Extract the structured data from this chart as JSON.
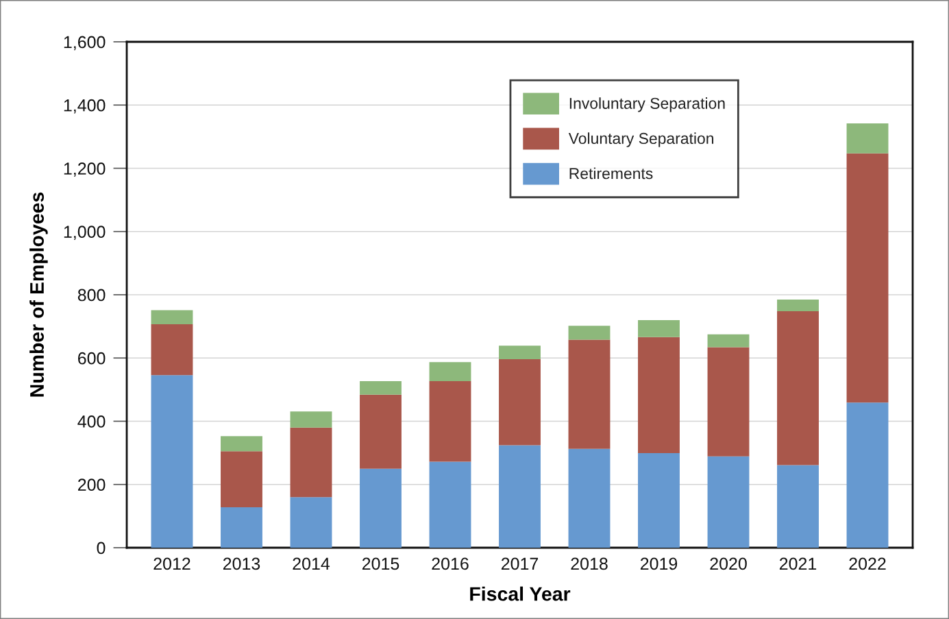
{
  "chart_data": {
    "type": "bar",
    "stacked": true,
    "xlabel": "Fiscal Year",
    "ylabel": "Number of Employees",
    "categories": [
      "2012",
      "2013",
      "2014",
      "2015",
      "2016",
      "2017",
      "2018",
      "2019",
      "2020",
      "2021",
      "2022"
    ],
    "series": [
      {
        "name": "Retirements",
        "color": "#6699d0",
        "values": [
          546,
          128,
          160,
          250,
          272,
          324,
          313,
          299,
          289,
          261,
          459
        ]
      },
      {
        "name": "Voluntary Separation",
        "color": "#a9574b",
        "values": [
          161,
          177,
          220,
          234,
          255,
          272,
          345,
          367,
          345,
          487,
          788
        ]
      },
      {
        "name": "Involuntary Separation",
        "color": "#8db87b",
        "values": [
          44,
          48,
          51,
          43,
          60,
          43,
          44,
          54,
          41,
          37,
          95
        ]
      }
    ],
    "ylim": [
      0,
      1600
    ],
    "yticks": [
      0,
      200,
      400,
      600,
      800,
      {
        "value": 1000,
        "label": "1,000"
      },
      {
        "value": 1200,
        "label": "1,200"
      },
      {
        "value": 1400,
        "label": "1,400"
      },
      {
        "value": 1600,
        "label": "1,600"
      }
    ],
    "grid": "y",
    "legend": "top right"
  }
}
